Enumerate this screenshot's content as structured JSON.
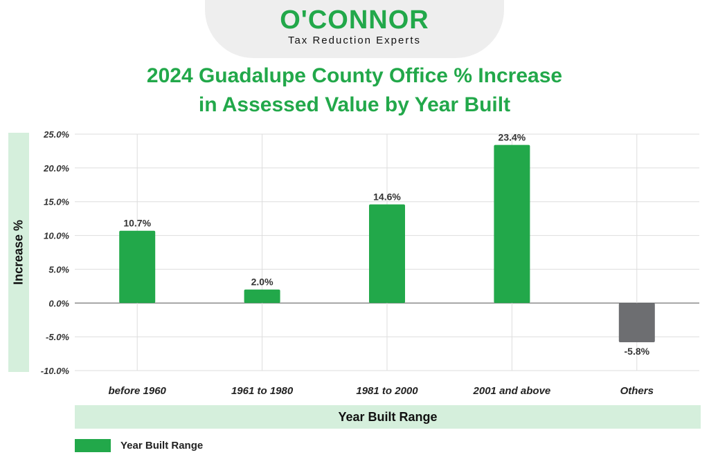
{
  "logo": {
    "name": "O'CONNOR",
    "tagline": "Tax Reduction Experts"
  },
  "title": {
    "line1": "2024 Guadalupe County Office % Increase",
    "line2": "in Assessed Value by Year Built"
  },
  "colors": {
    "positive": "#22a84a",
    "negative": "#6d6e71",
    "label_band": "#d5efdc"
  },
  "chart_data": {
    "type": "bar",
    "title": "2024 Guadalupe County Office % Increase in Assessed Value by Year Built",
    "xlabel": "Year Built Range",
    "ylabel": "Increase %",
    "categories": [
      "before 1960",
      "1961 to 1980",
      "1981 to 2000",
      "2001 and above",
      "Others"
    ],
    "series": [
      {
        "name": "Year Built Range",
        "values": [
          10.7,
          2.0,
          14.6,
          23.4,
          -5.8
        ],
        "labels": [
          "10.7%",
          "2.0%",
          "14.6%",
          "23.4%",
          "-5.8%"
        ]
      }
    ],
    "ylim": [
      -10,
      25
    ],
    "yticks": [
      25,
      20,
      15,
      10,
      5,
      0,
      -5,
      -10
    ],
    "ytick_labels": [
      "25.0%",
      "20.0%",
      "15.0%",
      "10.0%",
      "5.0%",
      "0.0%",
      "-5.0%",
      "-10.0%"
    ],
    "grid": true,
    "legend": {
      "placement": "bottom-left",
      "label": "Year Built Range"
    }
  }
}
